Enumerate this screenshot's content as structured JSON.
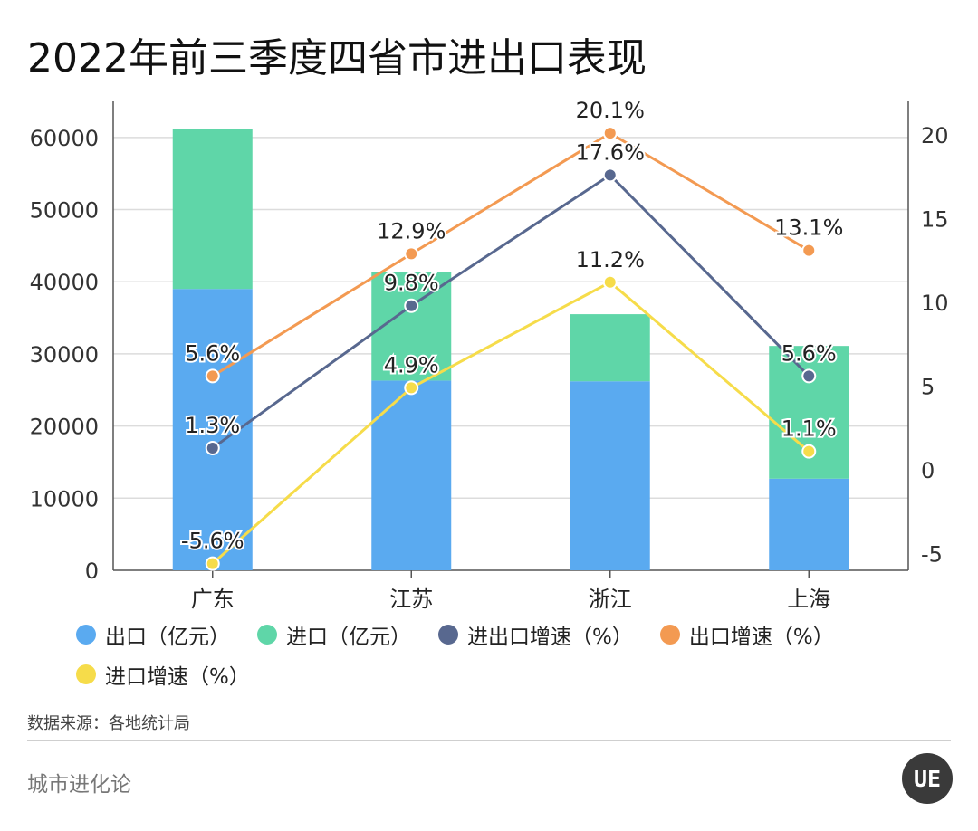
{
  "title": "2022年前三季度四省市进出口表现",
  "source": "数据来源：各地统计局",
  "brand": "城市进化论",
  "logo_text": "UE",
  "legend": [
    {
      "label": "出口（亿元）",
      "color": "#5aaaf0"
    },
    {
      "label": "进口（亿元）",
      "color": "#5fd6a8"
    },
    {
      "label": "进出口增速（%）",
      "color": "#58688f"
    },
    {
      "label": "出口增速（%）",
      "color": "#f39a52"
    },
    {
      "label": "进口增速（%）",
      "color": "#f6dc4a"
    }
  ],
  "chart_data": {
    "type": "bar",
    "categories": [
      "广东",
      "江苏",
      "浙江",
      "上海"
    ],
    "bars_stacked": true,
    "left_axis": {
      "ylim": [
        0,
        65000
      ],
      "ticks": [
        0,
        10000,
        20000,
        30000,
        40000,
        50000,
        60000
      ]
    },
    "right_axis": {
      "ylim": [
        -6,
        22
      ],
      "ticks": [
        -5,
        0,
        5,
        10,
        15,
        20
      ]
    },
    "series": [
      {
        "name": "出口（亿元）",
        "kind": "bar",
        "axis": "left",
        "color": "#5aaaf0",
        "values": [
          39000,
          26300,
          26200,
          12700
        ]
      },
      {
        "name": "进口（亿元）",
        "kind": "bar",
        "axis": "left",
        "color": "#5fd6a8",
        "values": [
          22200,
          15000,
          9300,
          18400
        ]
      },
      {
        "name": "进出口增速（%）",
        "kind": "line",
        "axis": "right",
        "color": "#58688f",
        "values": [
          1.3,
          9.8,
          17.6,
          5.6
        ],
        "labels": [
          "1.3%",
          "9.8%",
          "17.6%",
          "5.6%"
        ]
      },
      {
        "name": "出口增速（%）",
        "kind": "line",
        "axis": "right",
        "color": "#f39a52",
        "values": [
          5.6,
          12.9,
          20.1,
          13.1
        ],
        "labels": [
          "5.6%",
          "12.9%",
          "20.1%",
          "13.1%"
        ]
      },
      {
        "name": "进口增速（%）",
        "kind": "line",
        "axis": "right",
        "color": "#f6dc4a",
        "values": [
          -5.6,
          4.9,
          11.2,
          1.1
        ],
        "labels": [
          "-5.6%",
          "4.9%",
          "11.2%",
          "1.1%"
        ]
      }
    ],
    "grid": true,
    "legend_position": "bottom"
  }
}
